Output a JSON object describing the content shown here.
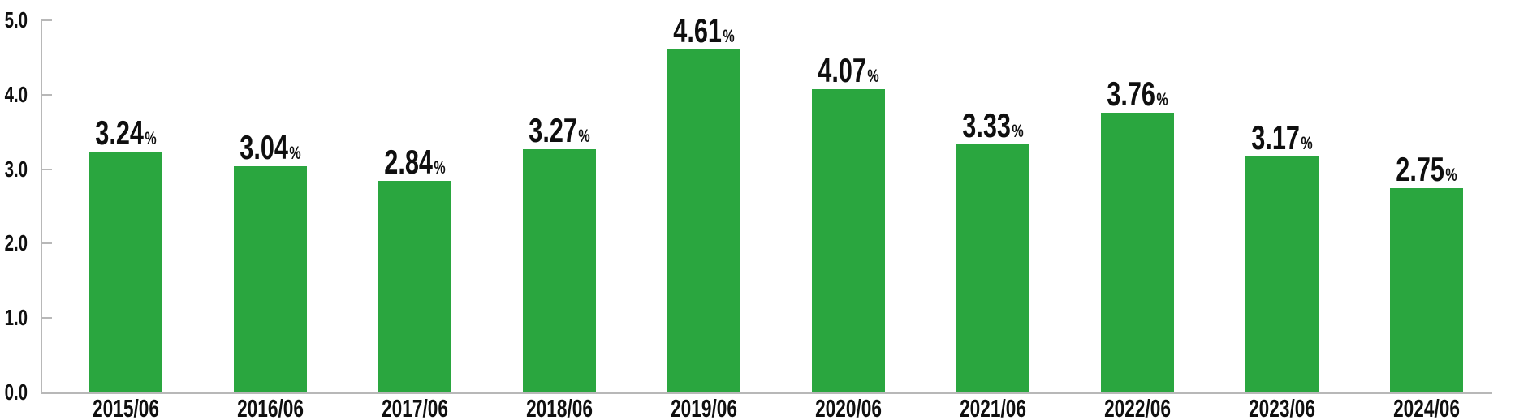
{
  "chart_data": {
    "type": "bar",
    "title": "",
    "categories": [
      "2015/06",
      "2016/06",
      "2017/06",
      "2018/06",
      "2019/06",
      "2020/06",
      "2021/06",
      "2022/06",
      "2023/06",
      "2024/06"
    ],
    "values": [
      3.24,
      3.04,
      2.84,
      3.27,
      4.61,
      4.07,
      3.33,
      3.76,
      3.17,
      2.75
    ],
    "value_labels": [
      "3.24",
      "3.04",
      "2.84",
      "3.27",
      "4.61",
      "4.07",
      "3.33",
      "3.76",
      "3.17",
      "2.75"
    ],
    "value_suffix": "%",
    "xlabel": "",
    "ylabel": "",
    "ylim": [
      0,
      5
    ],
    "yticks": [
      0,
      1,
      2,
      3,
      4,
      5
    ],
    "ytick_labels": [
      "0.0",
      "1.0",
      "2.0",
      "3.0",
      "4.0",
      "5.0"
    ],
    "grid": false,
    "legend_position": "none",
    "colors": {
      "bar": "#2aa63f",
      "axis": "#b8b8b8",
      "text": "#0f0f0f",
      "background": "#ffffff"
    }
  }
}
